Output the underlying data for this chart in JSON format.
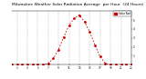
{
  "hours": [
    0,
    1,
    2,
    3,
    4,
    5,
    6,
    7,
    8,
    9,
    10,
    11,
    12,
    13,
    14,
    15,
    16,
    17,
    18,
    19,
    20,
    21,
    22,
    23
  ],
  "solar": [
    0,
    0,
    0,
    0,
    0,
    0,
    0,
    15,
    70,
    170,
    310,
    440,
    520,
    555,
    480,
    365,
    220,
    90,
    15,
    0,
    0,
    0,
    0,
    0
  ],
  "line_color": "#cc0000",
  "bg_color": "#ffffff",
  "grid_color": "#aaaaaa",
  "title": "Milwaukee Weather Solar Radiation Average  per Hour  (24 Hours)",
  "title_fontsize": 3.2,
  "legend_label": "Solar Rad",
  "legend_color": "#cc0000",
  "ylim": [
    0,
    600
  ],
  "xlim": [
    0,
    23
  ],
  "xticks": [
    1,
    3,
    5,
    7,
    9,
    11,
    13,
    15,
    17,
    19,
    21,
    23
  ],
  "xtick_labels": [
    "1",
    "3",
    "5",
    "7",
    "9",
    "11",
    "13",
    "15",
    "17",
    "19",
    "21",
    "23"
  ],
  "ytick_vals": [
    100,
    200,
    300,
    400,
    500
  ],
  "ytick_labels": [
    "1",
    "2",
    "3",
    "4",
    "5"
  ]
}
